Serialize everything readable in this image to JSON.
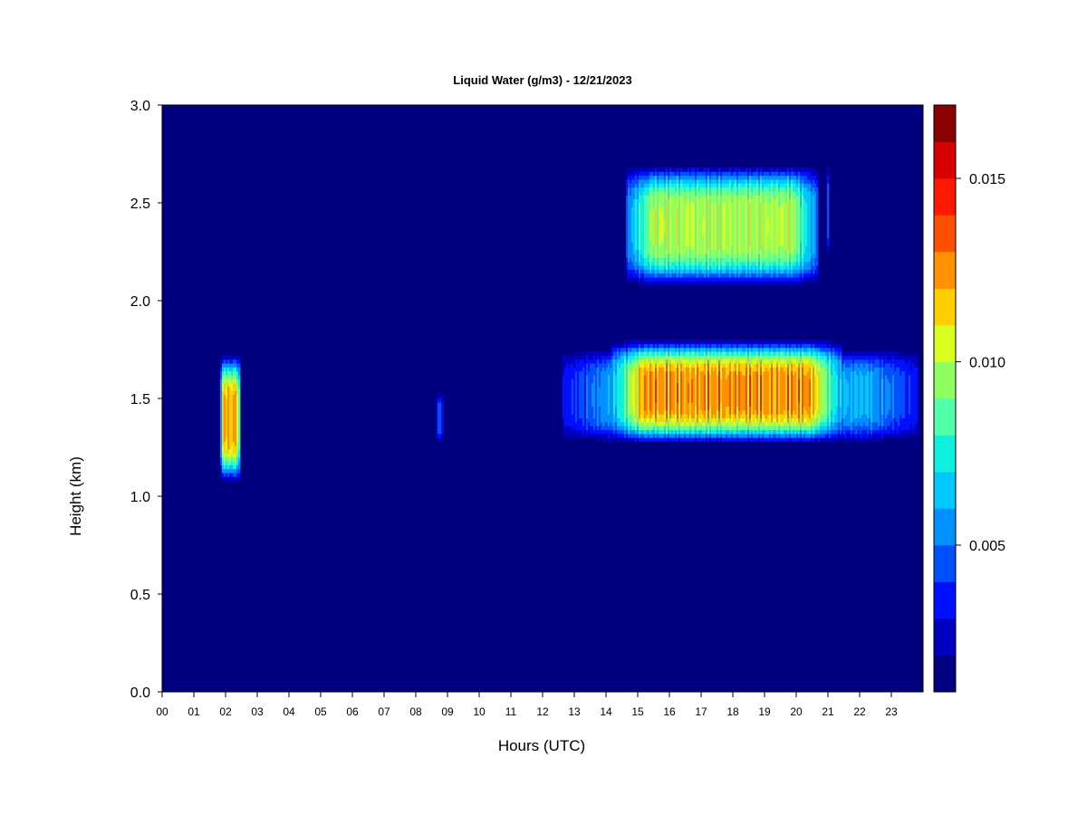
{
  "chart_data": {
    "type": "heatmap",
    "title": "Liquid Water (g/m3) - 12/21/2023",
    "xlabel": "Hours (UTC)",
    "ylabel": "Height (km)",
    "xlim": [
      0,
      24
    ],
    "ylim": [
      0,
      3.0
    ],
    "x_ticks": [
      0,
      1,
      2,
      3,
      4,
      5,
      6,
      7,
      8,
      9,
      10,
      11,
      12,
      13,
      14,
      15,
      16,
      17,
      18,
      19,
      20,
      21,
      22,
      23
    ],
    "x_tick_labels": [
      "00",
      "01",
      "02",
      "03",
      "04",
      "05",
      "06",
      "07",
      "08",
      "09",
      "10",
      "11",
      "12",
      "13",
      "14",
      "15",
      "16",
      "17",
      "18",
      "19",
      "20",
      "21",
      "22",
      "23"
    ],
    "y_ticks": [
      0,
      0.5,
      1.0,
      1.5,
      2.0,
      2.5,
      3.0
    ],
    "y_tick_labels": [
      "0.0",
      "0.5",
      "1.0",
      "1.5",
      "2.0",
      "2.5",
      "3.0"
    ],
    "background_color": "#00007f",
    "colorbar": {
      "range": [
        0.001,
        0.017
      ],
      "ticks": [
        0.005,
        0.01,
        0.015
      ],
      "tick_labels": [
        "0.005",
        "0.010",
        "0.015"
      ],
      "colors": [
        "#000080",
        "#0000c0",
        "#0010ff",
        "#0050ff",
        "#0090ff",
        "#00c8ff",
        "#10f0e0",
        "#50ffa8",
        "#90ff60",
        "#d8ff20",
        "#ffd000",
        "#ff9000",
        "#ff5000",
        "#ff1800",
        "#d80000",
        "#880000"
      ]
    },
    "regions": [
      {
        "x0": 1.85,
        "x1": 2.45,
        "y0": 1.05,
        "y1": 1.75,
        "peak": 0.014
      },
      {
        "x0": 8.65,
        "x1": 8.85,
        "y0": 1.25,
        "y1": 1.55,
        "peak": 0.005
      },
      {
        "x0": 14.65,
        "x1": 20.7,
        "y0": 2.05,
        "y1": 2.72,
        "peak": 0.0115
      },
      {
        "x0": 20.95,
        "x1": 21.05,
        "y0": 2.2,
        "y1": 2.72,
        "peak": 0.006
      },
      {
        "x0": 12.65,
        "x1": 23.85,
        "y0": 1.25,
        "y1": 1.78,
        "peak": 0.007
      },
      {
        "x0": 14.2,
        "x1": 21.4,
        "y0": 1.25,
        "y1": 1.82,
        "peak": 0.0145
      }
    ]
  }
}
